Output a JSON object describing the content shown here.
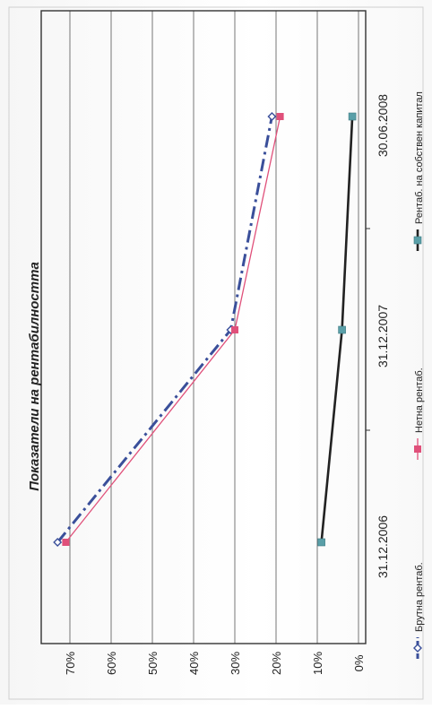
{
  "chart_data": {
    "type": "line",
    "title": "Показатели на рентабилността",
    "categories": [
      "31.12.2006",
      "31.12.2007",
      "30.06.2008"
    ],
    "yticks": [
      "0%",
      "10%",
      "20%",
      "30%",
      "40%",
      "50%",
      "60%",
      "70%"
    ],
    "ylim": [
      0,
      75
    ],
    "orientation": "rotated-90-clockwise",
    "grid": true,
    "legend_position": "bottom",
    "series": [
      {
        "name": "Брутна рентаб.",
        "values": [
          73,
          31,
          21
        ],
        "color": "#3a4f9a",
        "marker": "diamond",
        "dash": "dashdot"
      },
      {
        "name": "Нетна рентаб.",
        "values": [
          71,
          30,
          19
        ],
        "color": "#e0507a",
        "marker": "square",
        "dash": "solid"
      },
      {
        "name": "Рентаб. на собствен капитал",
        "values": [
          9,
          4,
          1.5
        ],
        "color": "#222222",
        "marker": "square-teal",
        "dash": "solid"
      }
    ]
  },
  "colors": {
    "marker_teal": "#5a9fa8",
    "grid": "#555555"
  }
}
